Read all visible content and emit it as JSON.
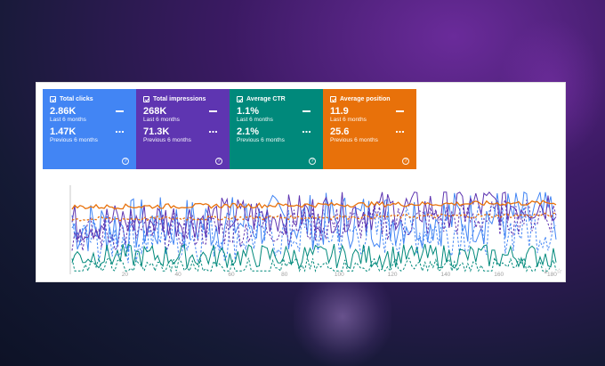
{
  "cards": [
    {
      "label": "Total clicks",
      "value": "2.86K",
      "value_period": "Last 6 months",
      "prev_value": "1.47K",
      "prev_period": "Previous 6 months",
      "color": "#4285f4"
    },
    {
      "label": "Total impressions",
      "value": "268K",
      "value_period": "Last 6 months",
      "prev_value": "71.3K",
      "prev_period": "Previous 6 months",
      "color": "#5e35b1"
    },
    {
      "label": "Average CTR",
      "value": "1.1%",
      "value_period": "Last 6 months",
      "prev_value": "2.1%",
      "prev_period": "Previous 6 months",
      "color": "#00897b"
    },
    {
      "label": "Average position",
      "value": "11.9",
      "value_period": "Last 6 months",
      "prev_value": "25.6",
      "prev_period": "Previous 6 months",
      "color": "#e8710a"
    }
  ],
  "help_glyph": "?",
  "chart_data": {
    "type": "line",
    "x_ticks": [
      "20",
      "40",
      "60",
      "80",
      "100",
      "120",
      "140",
      "160",
      "180"
    ],
    "xlim": [
      0,
      182
    ],
    "series": [
      {
        "metric": "clicks",
        "period": "last",
        "color": "#4285f4",
        "style": "solid"
      },
      {
        "metric": "clicks",
        "period": "previous",
        "color": "#4285f4",
        "style": "dashed"
      },
      {
        "metric": "impressions",
        "period": "last",
        "color": "#5e35b1",
        "style": "solid"
      },
      {
        "metric": "impressions",
        "period": "previous",
        "color": "#5e35b1",
        "style": "dashed"
      },
      {
        "metric": "ctr",
        "period": "last",
        "color": "#00897b",
        "style": "solid"
      },
      {
        "metric": "ctr",
        "period": "previous",
        "color": "#00897b",
        "style": "dashed"
      },
      {
        "metric": "position",
        "period": "last",
        "color": "#e8710a",
        "style": "solid"
      },
      {
        "metric": "position",
        "period": "previous",
        "color": "#e8710a",
        "style": "dashed"
      }
    ]
  }
}
